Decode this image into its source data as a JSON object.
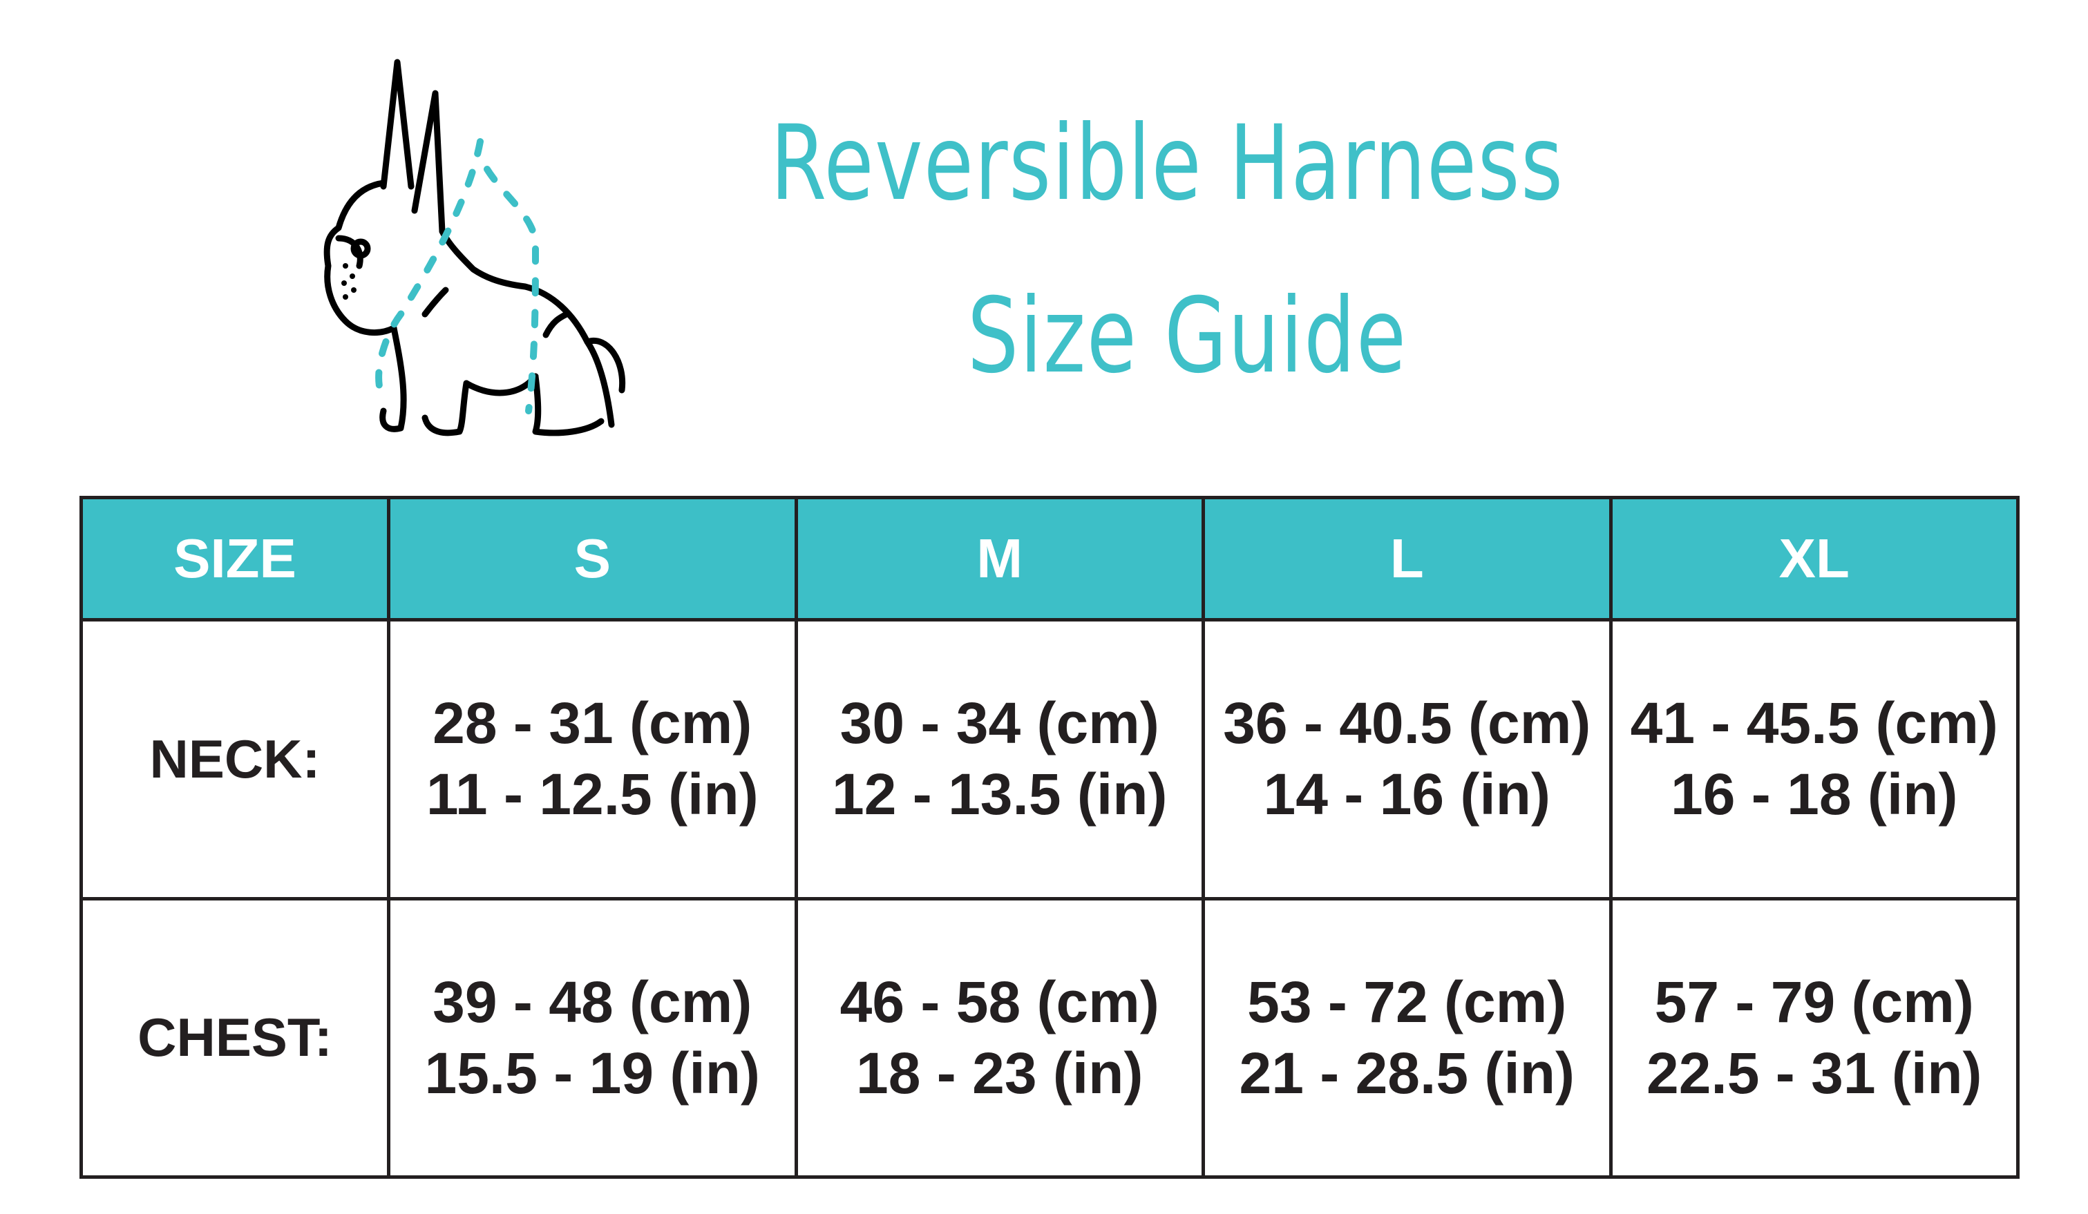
{
  "title": {
    "line1": "Reversible Harness",
    "line2": "Size Guide"
  },
  "colors": {
    "accent": "#3dbfc7",
    "text": "#231f20",
    "border": "#231f20"
  },
  "illustration": "french-bulldog-with-dashed-harness-measure-lines",
  "table": {
    "headers": [
      "SIZE",
      "S",
      "M",
      "L",
      "XL"
    ],
    "rows": [
      {
        "label": "NECK:",
        "cells": [
          {
            "cm": "28 - 31 (cm)",
            "in": "11 - 12.5 (in)"
          },
          {
            "cm": "30 - 34 (cm)",
            "in": "12 - 13.5 (in)"
          },
          {
            "cm": "36 - 40.5 (cm)",
            "in": "14 - 16 (in)"
          },
          {
            "cm": "41 - 45.5 (cm)",
            "in": "16 - 18 (in)"
          }
        ]
      },
      {
        "label": "CHEST:",
        "cells": [
          {
            "cm": "39 - 48 (cm)",
            "in": "15.5 - 19 (in)"
          },
          {
            "cm": "46 - 58 (cm)",
            "in": "18 - 23 (in)"
          },
          {
            "cm": "53 - 72 (cm)",
            "in": "21 - 28.5 (in)"
          },
          {
            "cm": "57 - 79 (cm)",
            "in": "22.5 - 31 (in)"
          }
        ]
      }
    ]
  }
}
